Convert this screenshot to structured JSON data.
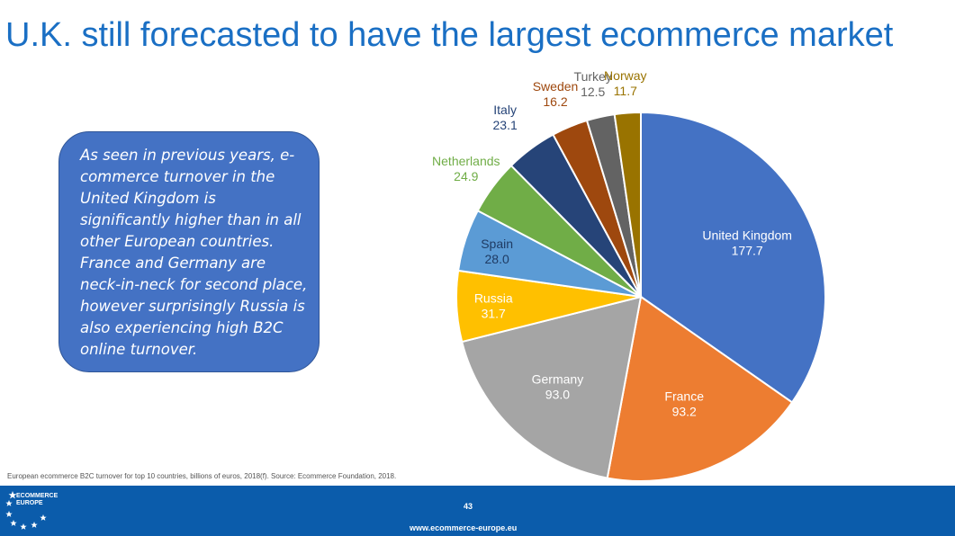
{
  "slide": {
    "title": "U.K. still forecasted to have the largest ecommerce market",
    "callout": "As seen in previous years, e-commerce turnover in the United Kingdom is significantly higher than in all other European countries. France and Germany are neck-in-neck for second place, however surprisingly Russia is also experiencing high B2C online turnover.",
    "source": "European ecommerce B2C turnover for top 10 countries, billions of euros, 2018(f). Source: Ecommerce Foundation, 2018.",
    "page_number": "43",
    "url": "www.ecommerce-europe.eu",
    "logo_line1": "ECOMMERCE",
    "logo_line2": "EUROPE"
  },
  "colors": {
    "title": "#1a6fc4",
    "callout_bg": "#4472c4",
    "footer_bg": "#0b5cab"
  },
  "chart_data": {
    "type": "pie",
    "title": "",
    "start_angle_deg": 0,
    "direction": "clockwise",
    "slices": [
      {
        "label": "United Kingdom",
        "value": 177.7,
        "color": "#4472c4",
        "label_color": "#ffffff"
      },
      {
        "label": "France",
        "value": 93.2,
        "color": "#ed7d31",
        "label_color": "#ffffff"
      },
      {
        "label": "Germany",
        "value": 93.0,
        "color": "#a5a5a5",
        "label_color": "#ffffff"
      },
      {
        "label": "Russia",
        "value": 31.7,
        "color": "#ffc000",
        "label_color": "#ffffff"
      },
      {
        "label": "Spain",
        "value": 28.0,
        "color": "#5b9bd5",
        "label_color": "#1f3b63"
      },
      {
        "label": "Netherlands",
        "value": 24.9,
        "color": "#70ad47",
        "label_color": "#70ad47"
      },
      {
        "label": "Italy",
        "value": 23.1,
        "color": "#264478",
        "label_color": "#264478"
      },
      {
        "label": "Sweden",
        "value": 16.2,
        "color": "#9e480e",
        "label_color": "#9e480e"
      },
      {
        "label": "Turkey",
        "value": 12.5,
        "color": "#636363",
        "label_color": "#636363"
      },
      {
        "label": "Norway",
        "value": 11.7,
        "color": "#997300",
        "label_color": "#997300"
      }
    ]
  }
}
